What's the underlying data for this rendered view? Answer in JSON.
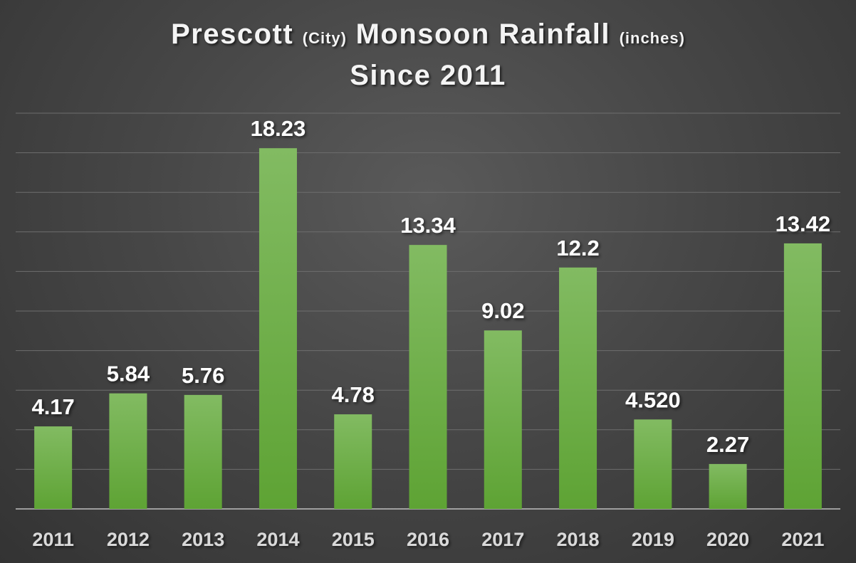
{
  "title": {
    "main_1": "Prescott",
    "paren_1": "(City)",
    "main_2": "Monsoon Rainfall",
    "paren_2": "(inches)",
    "line2": "Since 2011"
  },
  "colors": {
    "bar_top": "#82bb62",
    "bar_bottom": "#5ea334",
    "text": "#ffffff",
    "tick_text": "#d9d9d9",
    "grid": "#6e6e6e",
    "axis": "#bfbfbf"
  },
  "chart_data": {
    "type": "bar",
    "title": "Prescott (City) Monsoon Rainfall (inches) Since 2011",
    "categories": [
      "2011",
      "2012",
      "2013",
      "2014",
      "2015",
      "2016",
      "2017",
      "2018",
      "2019",
      "2020",
      "2021"
    ],
    "values": [
      4.17,
      5.84,
      5.76,
      18.23,
      4.78,
      13.34,
      9.02,
      12.2,
      4.52,
      2.27,
      13.42
    ],
    "data_labels": [
      "4.17",
      "5.84",
      "5.76",
      "18.23",
      "4.78",
      "13.34",
      "9.02",
      "12.2",
      "4.520",
      "2.27",
      "13.42"
    ],
    "xlabel": "",
    "ylabel": "",
    "ylim": [
      0,
      20
    ],
    "grid": true,
    "legend": "none"
  }
}
